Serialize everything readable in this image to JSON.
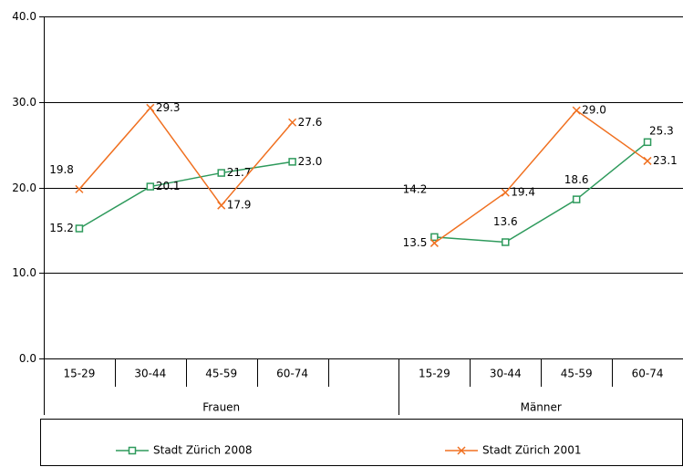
{
  "chart_data": {
    "type": "line",
    "categories": [
      "15-29",
      "30-44",
      "45-59",
      "60-74",
      null,
      "15-29",
      "30-44",
      "45-59",
      "60-74"
    ],
    "group_labels": [
      "Frauen",
      "Männer"
    ],
    "series": [
      {
        "name": "Stadt Zürich 2008",
        "color": "#2e9a5c",
        "marker": "square",
        "values": [
          15.2,
          20.1,
          21.7,
          23.0,
          null,
          14.2,
          13.6,
          18.6,
          25.3
        ],
        "value_labels": [
          "15.2",
          "20.1",
          "21.7",
          "23.0",
          null,
          "14.2",
          "13.6",
          "18.6",
          "25.3"
        ]
      },
      {
        "name": "Stadt Zürich 2001",
        "color": "#f07020",
        "marker": "x",
        "values": [
          19.8,
          29.3,
          17.9,
          27.6,
          null,
          13.5,
          19.4,
          29.0,
          23.1
        ],
        "value_labels": [
          "19.8",
          "29.3",
          "17.9",
          "27.6",
          null,
          "13.5",
          "19.4",
          "29.0",
          "23.1"
        ]
      }
    ],
    "ylim": [
      0,
      40
    ],
    "yticks": [
      {
        "value": 0,
        "label": "0.0"
      },
      {
        "value": 10,
        "label": "10.0"
      },
      {
        "value": 20,
        "label": "20.0"
      },
      {
        "value": 30,
        "label": "30.0"
      },
      {
        "value": 40,
        "label": "40.0"
      }
    ],
    "grid": true,
    "legend": "bottom"
  }
}
